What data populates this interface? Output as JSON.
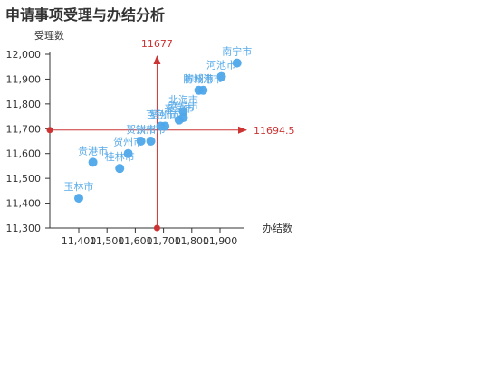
{
  "chart_data": {
    "type": "scatter",
    "title": "申请事项受理与办结分析",
    "xlabel": "办结数",
    "ylabel": "受理数",
    "xlim": [
      1300,
      1960
    ],
    "ylim": [
      11300,
      12000
    ],
    "x_ticks": [
      1400,
      1500,
      1600,
      1700,
      1800,
      1900
    ],
    "x_tick_labels": [
      "11,400",
      "11,500",
      "11,600",
      "11,700",
      "11,800",
      "11,900"
    ],
    "y_ticks": [
      11300,
      11400,
      11500,
      11600,
      11700,
      11800,
      11900,
      12000
    ],
    "y_tick_labels": [
      "11,300",
      "11,400",
      "11,500",
      "11,600",
      "11,700",
      "11,800",
      "11,900",
      "12,000"
    ],
    "ref_x": {
      "value": 1677,
      "label": "11677"
    },
    "ref_y": {
      "value": 11694.5,
      "label": "11694.5"
    },
    "grid": false,
    "point_color": "#4da6ea",
    "ref_color": "#cc3333",
    "points": [
      {
        "name": "南宁市",
        "x": 1960,
        "y": 11965
      },
      {
        "name": "河池市",
        "x": 1905,
        "y": 11910
      },
      {
        "name": "防城港市",
        "x": 1840,
        "y": 11855
      },
      {
        "name": "柳州市",
        "x": 1825,
        "y": 11855
      },
      {
        "name": "北海市",
        "x": 1770,
        "y": 11770
      },
      {
        "name": "崇左市",
        "x": 1770,
        "y": 11745
      },
      {
        "name": "来宾市",
        "x": 1755,
        "y": 11735
      },
      {
        "name": "梧州市",
        "x": 1705,
        "y": 11710
      },
      {
        "name": "百色市",
        "x": 1690,
        "y": 11710
      },
      {
        "name": "钦州市",
        "x": 1655,
        "y": 11650
      },
      {
        "name": "贺州市",
        "x": 1620,
        "y": 11650
      },
      {
        "name": "贵港市",
        "x": 1450,
        "y": 11565
      },
      {
        "name": "桂林市",
        "x": 1545,
        "y": 11540
      },
      {
        "name": "贺州市",
        "x": 1575,
        "y": 11600
      },
      {
        "name": "玉林市",
        "x": 1400,
        "y": 11420
      }
    ]
  }
}
